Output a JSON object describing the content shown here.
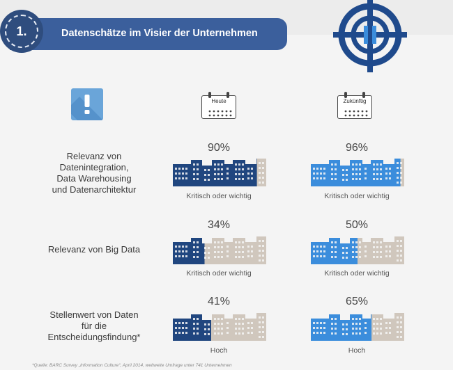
{
  "header": {
    "number": "1.",
    "title": "Datenschätze im Visier der Unternehmen"
  },
  "columns": [
    {
      "calendar_label": "Heute",
      "bar_color": "#20467f"
    },
    {
      "calendar_label": "Zukünftig",
      "bar_color": "#3b8ddc"
    }
  ],
  "colors": {
    "empty_building": "#d0c7bd",
    "banner": "#3b5f9c",
    "target": "#1f4a8c",
    "warning_icon": "#6aa5d9"
  },
  "icons": {
    "badge": "number-badge",
    "target": "crosshair-target-icon",
    "warning": "exclamation-icon",
    "calendar": "calendar-icon"
  },
  "rows": [
    {
      "label": "Relevanz von Datenintegration, Data Warehousing und Datenarchitektur",
      "label_lines": [
        "Relevanz von",
        "Datenintegration,",
        "Data Warehousing",
        "und Datenarchitektur"
      ],
      "today": {
        "percent": "90%",
        "value": 0.9,
        "caption": "Kritisch oder wichtig"
      },
      "future": {
        "percent": "96%",
        "value": 0.96,
        "caption": "Kritisch oder wichtig"
      }
    },
    {
      "label": "Relevanz von Big Data",
      "label_lines": [
        "Relevanz von Big Data"
      ],
      "today": {
        "percent": "34%",
        "value": 0.34,
        "caption": "Kritisch oder wichtig"
      },
      "future": {
        "percent": "50%",
        "value": 0.5,
        "caption": "Kritisch oder wichtig"
      }
    },
    {
      "label": "Stellenwert von Daten für die Entscheidungsfindung*",
      "label_lines": [
        "Stellenwert von Daten",
        "für die",
        "Entscheidungsfindung*"
      ],
      "today": {
        "percent": "41%",
        "value": 0.41,
        "caption": "Hoch"
      },
      "future": {
        "percent": "65%",
        "value": 0.65,
        "caption": "Hoch"
      }
    }
  ],
  "footnote": "*Quelle: BARC Survey „Information Culture“, April 2014, weltweite Umfrage unter 741 Unternehmen"
}
